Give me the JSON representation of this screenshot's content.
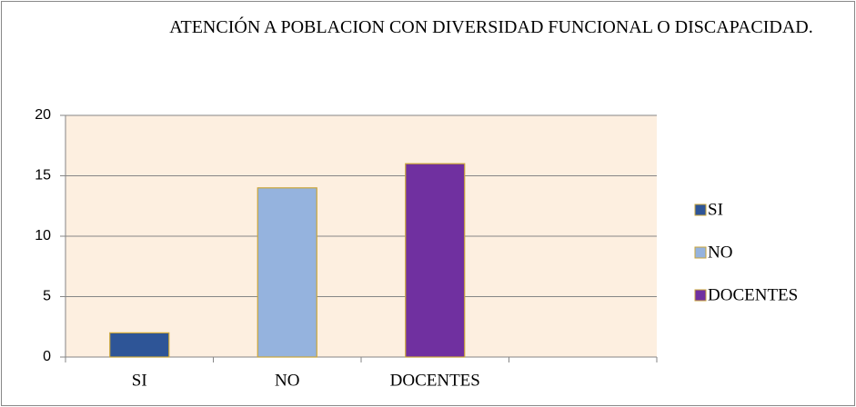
{
  "chart_data": {
    "type": "bar",
    "title": "ATENCIÓN A POBLACION CON DIVERSIDAD FUNCIONAL O DISCAPACIDAD.",
    "categories": [
      "SI",
      "NO",
      "DOCENTES",
      null
    ],
    "values": [
      2,
      14,
      16,
      null
    ],
    "colors": [
      "#2e5597",
      "#95b3de",
      "#7030a0",
      null
    ],
    "ylim": [
      0,
      20
    ],
    "yticks": [
      0,
      5,
      10,
      15,
      20
    ],
    "grid": true,
    "legend": "right"
  }
}
